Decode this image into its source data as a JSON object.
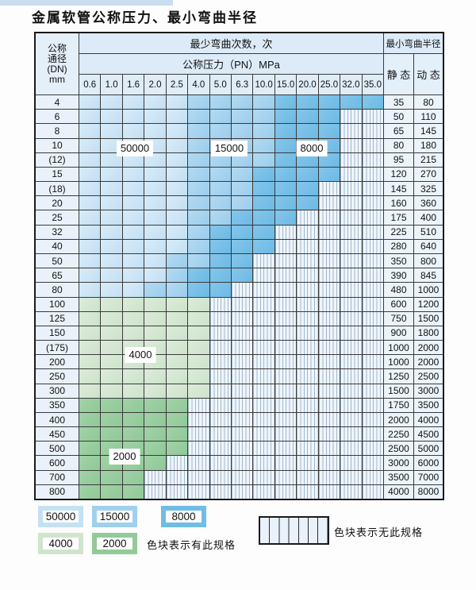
{
  "title": "金属软管公称压力、最小弯曲半径",
  "table": {
    "corner_lines": [
      "公称",
      "通径",
      "(DN)",
      "mm"
    ],
    "bend_header": "最少弯曲次数，次",
    "pressure_header": "公称压力（PN）MPa",
    "radius_header": "最小弯曲半径",
    "static_label": "静 态",
    "dynamic_label": "动 态",
    "pressures": [
      "0.6",
      "1.0",
      "1.6",
      "2.0",
      "2.5",
      "4.0",
      "5.0",
      "6.3",
      "10.0",
      "15.0",
      "20.0",
      "25.0",
      "32.0",
      "35.0"
    ],
    "cell_legend": {
      "1": "50000",
      "2": "15000",
      "3": "8000",
      "4": "4000",
      "5": "2000",
      "x": "no-spec"
    },
    "rows": [
      {
        "dn": "4",
        "cells": "11111222233333",
        "static": "35",
        "dynamic": "80"
      },
      {
        "dn": "6",
        "cells": "111112222333xx",
        "static": "50",
        "dynamic": "110"
      },
      {
        "dn": "8",
        "cells": "111112222333xx",
        "static": "65",
        "dynamic": "145"
      },
      {
        "dn": "10",
        "cells": "111112222333xx",
        "static": "80",
        "dynamic": "180"
      },
      {
        "dn": "(12)",
        "cells": "111112222333xx",
        "static": "95",
        "dynamic": "215"
      },
      {
        "dn": "15",
        "cells": "111112223333xx",
        "static": "120",
        "dynamic": "270"
      },
      {
        "dn": "(18)",
        "cells": "11111222333xxx",
        "static": "145",
        "dynamic": "325"
      },
      {
        "dn": "20",
        "cells": "11111222333xxx",
        "static": "160",
        "dynamic": "360"
      },
      {
        "dn": "25",
        "cells": "1111122333xxxx",
        "static": "175",
        "dynamic": "400"
      },
      {
        "dn": "32",
        "cells": "111112333xxxxx",
        "static": "225",
        "dynamic": "510"
      },
      {
        "dn": "40",
        "cells": "111112333xxxxx",
        "static": "280",
        "dynamic": "640"
      },
      {
        "dn": "50",
        "cells": "11112233xxxxxx",
        "static": "350",
        "dynamic": "800"
      },
      {
        "dn": "65",
        "cells": "11112333xxxxxx",
        "static": "390",
        "dynamic": "845"
      },
      {
        "dn": "80",
        "cells": "1112233xxxxxxx",
        "static": "480",
        "dynamic": "1000"
      },
      {
        "dn": "100",
        "cells": "444444xxxxxxxx",
        "static": "600",
        "dynamic": "1200"
      },
      {
        "dn": "125",
        "cells": "444444xxxxxxxx",
        "static": "750",
        "dynamic": "1500"
      },
      {
        "dn": "150",
        "cells": "444444xxxxxxxx",
        "static": "900",
        "dynamic": "1800"
      },
      {
        "dn": "(175)",
        "cells": "444444xxxxxxxx",
        "static": "1000",
        "dynamic": "2000"
      },
      {
        "dn": "200",
        "cells": "444444xxxxxxxx",
        "static": "1000",
        "dynamic": "2000"
      },
      {
        "dn": "250",
        "cells": "444444xxxxxxxx",
        "static": "1250",
        "dynamic": "2500"
      },
      {
        "dn": "300",
        "cells": "444444xxxxxxxx",
        "static": "1500",
        "dynamic": "3000"
      },
      {
        "dn": "350",
        "cells": "55555xxxxxxxxx",
        "static": "1750",
        "dynamic": "3500"
      },
      {
        "dn": "400",
        "cells": "55555xxxxxxxxx",
        "static": "2000",
        "dynamic": "4000"
      },
      {
        "dn": "450",
        "cells": "55555xxxxxxxxx",
        "static": "2250",
        "dynamic": "4500"
      },
      {
        "dn": "500",
        "cells": "55555xxxxxxxxx",
        "static": "2500",
        "dynamic": "5000"
      },
      {
        "dn": "600",
        "cells": "5555xxxxxxxxxx",
        "static": "3000",
        "dynamic": "6000"
      },
      {
        "dn": "700",
        "cells": "555xxxxxxxxxxx",
        "static": "3500",
        "dynamic": "7000"
      },
      {
        "dn": "800",
        "cells": "555xxxxxxxxxxx",
        "static": "4000",
        "dynamic": "8000"
      }
    ]
  },
  "overlays": [
    {
      "value": "50000"
    },
    {
      "value": "15000"
    },
    {
      "value": "8000"
    },
    {
      "value": "4000"
    },
    {
      "value": "2000"
    }
  ],
  "colors": {
    "c50000": "#c5e1f4",
    "c15000": "#9fd0ee",
    "c8000": "#6fbde7",
    "c4000": "#cfe5cd",
    "c2000": "#92ca99",
    "hatch_bg": "#eef5fc",
    "hatch_line": "#a2b8cb"
  },
  "legend": {
    "items": [
      {
        "value": "50000",
        "color_key": "c50000"
      },
      {
        "value": "15000",
        "color_key": "c15000"
      },
      {
        "value": "8000",
        "color_key": "c8000"
      },
      {
        "value": "4000",
        "color_key": "c4000"
      },
      {
        "value": "2000",
        "color_key": "c2000"
      }
    ],
    "has_spec_text": "色块表示有此规格",
    "no_spec_text": "色块表示无此规格"
  }
}
